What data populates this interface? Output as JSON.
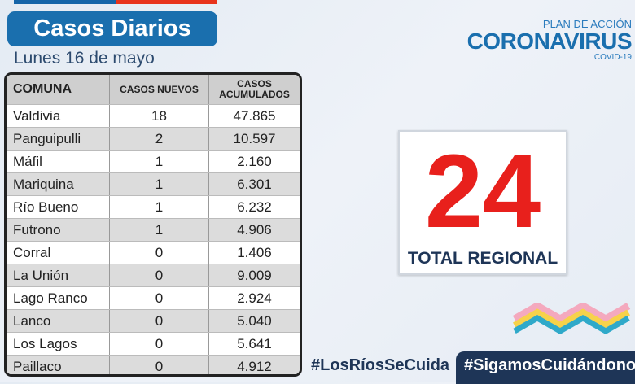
{
  "header": {
    "title": "Casos Diarios",
    "date": "Lunes 16 de mayo"
  },
  "logo": {
    "plan": "PLAN DE ACCIÓN",
    "name": "CORONAVIRUS",
    "sub": "COVID-19"
  },
  "table": {
    "columns": [
      "COMUNA",
      "CASOS NUEVOS",
      "CASOS ACUMULADOS"
    ],
    "rows": [
      {
        "comuna": "Valdivia",
        "nuevos": "18",
        "acumulados": "47.865"
      },
      {
        "comuna": "Panguipulli",
        "nuevos": "2",
        "acumulados": "10.597"
      },
      {
        "comuna": "Máfil",
        "nuevos": "1",
        "acumulados": "2.160"
      },
      {
        "comuna": "Mariquina",
        "nuevos": "1",
        "acumulados": "6.301"
      },
      {
        "comuna": "Río Bueno",
        "nuevos": "1",
        "acumulados": "6.232"
      },
      {
        "comuna": "Futrono",
        "nuevos": "1",
        "acumulados": "4.906"
      },
      {
        "comuna": "Corral",
        "nuevos": "0",
        "acumulados": "1.406"
      },
      {
        "comuna": "La Unión",
        "nuevos": "0",
        "acumulados": "9.009"
      },
      {
        "comuna": "Lago Ranco",
        "nuevos": "0",
        "acumulados": "2.924"
      },
      {
        "comuna": "Lanco",
        "nuevos": "0",
        "acumulados": "5.040"
      },
      {
        "comuna": "Los Lagos",
        "nuevos": "0",
        "acumulados": "5.641"
      },
      {
        "comuna": "Paillaco",
        "nuevos": "0",
        "acumulados": "4.912"
      }
    ]
  },
  "total": {
    "value": "24",
    "label": "TOTAL REGIONAL"
  },
  "hashtags": [
    "#LosRíosSeCuida",
    "#SigamosCuidándonos"
  ],
  "colors": {
    "title_bg": "#1a6fae",
    "total": "#e8201c",
    "dark": "#1e3557"
  }
}
